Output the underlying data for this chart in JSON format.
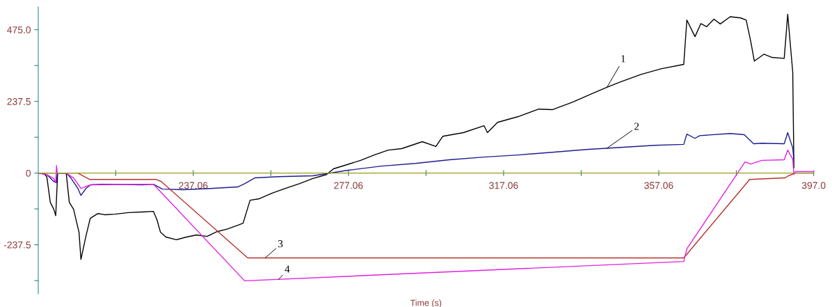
{
  "chart_data": {
    "type": "line",
    "xlabel": "Time (s)",
    "xlim": [
      197.1,
      397.0
    ],
    "ylim": [
      -400,
      550
    ],
    "xticks": [
      {
        "value": 217.06,
        "label": null
      },
      237.06,
      {
        "value": 257.06,
        "label": null
      },
      277.06,
      {
        "value": 297.06,
        "label": null
      },
      317.06,
      {
        "value": 337.06,
        "label": null
      },
      357.06,
      {
        "value": 377.06,
        "label": null
      },
      {
        "value": 397.0,
        "label": "397.0"
      }
    ],
    "yticks": [
      {
        "value": -356.25,
        "label": null
      },
      -237.5,
      {
        "value": -118.75,
        "label": null
      },
      0,
      {
        "value": 118.75,
        "label": null
      },
      237.5,
      {
        "value": 356.25,
        "label": null
      },
      {
        "value": 475.0,
        "label": "475.0"
      }
    ],
    "grid": false,
    "legend": false,
    "marker": "none",
    "line_style": "solid",
    "series": [
      {
        "name": "1",
        "color": "#000000",
        "x": [
          197.1,
          198.4,
          199.3,
          200.2,
          201.1,
          201.6,
          202.0,
          202.1,
          204.3,
          205.1,
          206.2,
          207.6,
          208.1,
          209.4,
          210.5,
          212.5,
          214.2,
          216.9,
          220.4,
          223.9,
          226.8,
          227.7,
          228.6,
          230.0,
          232.7,
          235.3,
          237.9,
          240.6,
          243.2,
          245.9,
          248.5,
          249.9,
          251.7,
          254.1,
          257.3,
          260.8,
          264.4,
          267.9,
          271.4,
          273.2,
          276.7,
          280.2,
          283.7,
          287.3,
          290.8,
          296.1,
          299.6,
          301.4,
          306.7,
          312.0,
          312.9,
          315.5,
          320.8,
          326.1,
          329.6,
          334.9,
          340.2,
          343.7,
          347.2,
          352.5,
          357.8,
          363.5,
          364.3,
          366.4,
          367.9,
          369.4,
          371.3,
          372.9,
          375.5,
          378.2,
          379.6,
          380.8,
          381.7,
          384.2,
          386.3,
          389.4,
          390.3,
          391.6,
          391.9
        ],
        "values": [
          0,
          0,
          -12,
          -97,
          -120,
          -141,
          -28,
          0,
          0,
          -97,
          -120,
          -196,
          -286,
          -208,
          -150,
          -134,
          -138,
          -136,
          -131,
          -129,
          -127,
          -155,
          -196,
          -212,
          -221,
          -212,
          -205,
          -210,
          -194,
          -185,
          -173,
          -166,
          -90,
          -85,
          -67,
          -51,
          -35,
          -18,
          -5,
          14,
          28,
          42,
          60,
          76,
          81,
          104,
          88,
          122,
          134,
          157,
          134,
          168,
          187,
          212,
          210,
          235,
          265,
          284,
          302,
          327,
          346,
          360,
          507,
          452,
          495,
          485,
          510,
          494,
          518,
          514,
          507,
          434,
          371,
          394,
          383,
          380,
          526,
          334,
          18
        ]
      },
      {
        "name": "2",
        "color": "#1c1c8e",
        "x": [
          197.1,
          199.3,
          201.1,
          201.8,
          202.0,
          204.3,
          205.5,
          207.3,
          208.1,
          209.4,
          210.6,
          213.3,
          223.9,
          226.8,
          229.1,
          234.4,
          241.5,
          248.5,
          250.3,
          252.9,
          259.1,
          267.9,
          276.7,
          285.5,
          294.3,
          303.1,
          312.0,
          320.8,
          329.6,
          338.4,
          347.2,
          356.0,
          363.5,
          364.3,
          366.4,
          367.6,
          375.5,
          379.1,
          381.5,
          383.6,
          389.4,
          390.3,
          391.6,
          391.9
        ],
        "values": [
          0,
          -5,
          -28,
          -32,
          0,
          0,
          -16,
          -51,
          -74,
          -51,
          -39,
          -37,
          -39,
          -37,
          -53,
          -55,
          -51,
          -46,
          -35,
          -16,
          -12,
          -9,
          9,
          23,
          32,
          44,
          53,
          60,
          69,
          78,
          85,
          92,
          95,
          129,
          115,
          124,
          131,
          127,
          97,
          99,
          97,
          134,
          83,
          41
        ]
      },
      {
        "name": "3",
        "color": "#b8302a",
        "x": [
          197.1,
          207.3,
          210.3,
          215.3,
          227.4,
          228.8,
          251.1,
          363.5,
          380.5,
          389.6,
          390.5,
          392.3,
          397.0
        ],
        "values": [
          0,
          0,
          -21,
          -21,
          -21,
          -28,
          -281,
          -281,
          -21,
          -16,
          -9,
          0,
          0
        ]
      },
      {
        "name": "4",
        "color": "#e020e0",
        "x": [
          197.1,
          199.3,
          201.1,
          201.6,
          201.8,
          202.0,
          204.3,
          206.2,
          208.1,
          210.6,
          226.8,
          250.3,
          363.5,
          364.3,
          379.3,
          380.8,
          383.6,
          389.4,
          390.3,
          391.6,
          391.9,
          392.3,
          397.0
        ],
        "values": [
          0,
          -5,
          -18,
          -32,
          25,
          0,
          0,
          -16,
          -51,
          -39,
          -37,
          -357,
          -293,
          -251,
          37,
          30,
          42,
          44,
          76,
          46,
          -5,
          5,
          5
        ]
      }
    ]
  }
}
